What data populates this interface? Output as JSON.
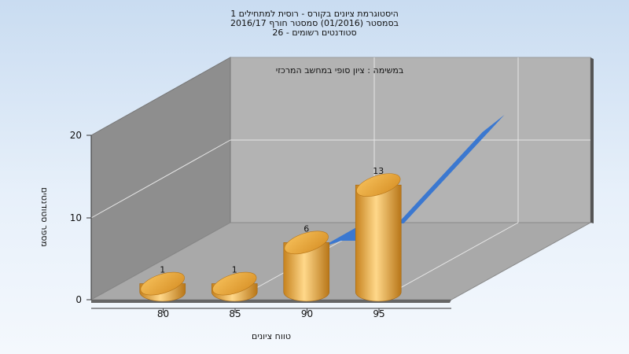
{
  "title_lines": [
    "היסטוגרמת ציונים בקורס - רוסית למתחילים 1",
    "בסמסטר  (01/2016)  סמסטר חורף 2016/17",
    "סטודנטים רשומים - 26"
  ],
  "colors": {
    "bar": "#e8a83a",
    "area": "#3b78d0",
    "back_wall": "#b3b3b3",
    "side_wall": "#8e8e8e",
    "floor": "#a9a9a9"
  },
  "chart_data": {
    "type": "bar",
    "annotation": "במשימה : ציון סופי במחשב המרכזי",
    "ylabel": "מספר סטודנטים",
    "xlabel": "טווח ציונים",
    "categories": [
      "80",
      "85",
      "90",
      "95"
    ],
    "yticks": [
      "0",
      "10",
      "20"
    ],
    "ylim": [
      0,
      20
    ],
    "series": [
      {
        "values": [
          1,
          1,
          6,
          13
        ],
        "labels": [
          "1",
          "1",
          "6",
          "13"
        ]
      }
    ],
    "area_series": {
      "x": [
        88.7,
        91.5,
        98.5
      ],
      "values": [
        5,
        5,
        20
      ]
    },
    "grid": true,
    "view": "3d"
  }
}
